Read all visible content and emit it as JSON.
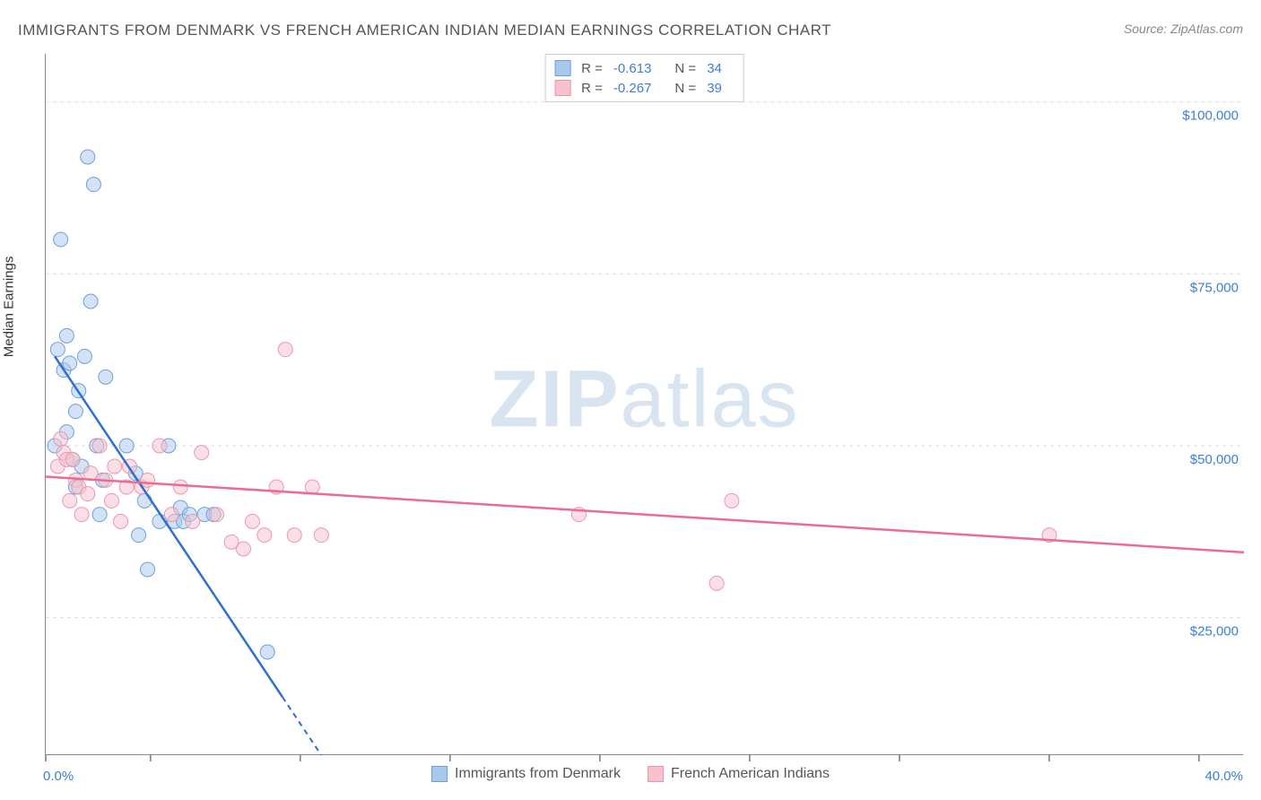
{
  "title": "IMMIGRANTS FROM DENMARK VS FRENCH AMERICAN INDIAN MEDIAN EARNINGS CORRELATION CHART",
  "source": "Source: ZipAtlas.com",
  "watermark": "ZIPatlas",
  "y_axis_label": "Median Earnings",
  "chart": {
    "type": "scatter",
    "xlim": [
      0,
      40
    ],
    "ylim": [
      5000,
      107000
    ],
    "x_tick_positions": [
      0,
      3.5,
      8.5,
      13.5,
      18.5,
      23.5,
      28.5,
      33.5,
      38.5
    ],
    "y_gridlines": [
      25000,
      50000,
      75000,
      100000
    ],
    "y_tick_labels": [
      "$25,000",
      "$50,000",
      "$75,000",
      "$100,000"
    ],
    "x_axis_min_label": "0.0%",
    "x_axis_max_label": "40.0%",
    "background_color": "#ffffff",
    "grid_color": "#dddddd",
    "axis_color": "#888888",
    "tick_color": "#333333",
    "label_color": "#3b7dd8",
    "marker_radius": 8,
    "marker_opacity": 0.5,
    "series": [
      {
        "name": "Immigrants from Denmark",
        "color_fill": "#a8c8ec",
        "color_stroke": "#6ca0dc",
        "line_color": "#2e6fd0",
        "R": "-0.613",
        "N": "34",
        "trend": {
          "x1": 0.3,
          "y1": 63000,
          "x2": 9.2,
          "y2": 5000,
          "dash_after_x": 7.9
        },
        "points": [
          [
            0.3,
            50000
          ],
          [
            0.4,
            64000
          ],
          [
            0.5,
            80000
          ],
          [
            0.6,
            61000
          ],
          [
            0.7,
            52000
          ],
          [
            0.7,
            66000
          ],
          [
            0.8,
            62000
          ],
          [
            0.9,
            48000
          ],
          [
            1.0,
            55000
          ],
          [
            1.0,
            44000
          ],
          [
            1.1,
            58000
          ],
          [
            1.2,
            47000
          ],
          [
            1.3,
            63000
          ],
          [
            1.4,
            92000
          ],
          [
            1.5,
            71000
          ],
          [
            1.6,
            88000
          ],
          [
            1.7,
            50000
          ],
          [
            1.8,
            40000
          ],
          [
            1.9,
            45000
          ],
          [
            2.0,
            60000
          ],
          [
            2.7,
            50000
          ],
          [
            3.0,
            46000
          ],
          [
            3.1,
            37000
          ],
          [
            3.3,
            42000
          ],
          [
            3.4,
            32000
          ],
          [
            3.8,
            39000
          ],
          [
            4.1,
            50000
          ],
          [
            4.3,
            39000
          ],
          [
            4.5,
            41000
          ],
          [
            4.6,
            39000
          ],
          [
            4.8,
            40000
          ],
          [
            5.3,
            40000
          ],
          [
            5.6,
            40000
          ],
          [
            7.4,
            20000
          ]
        ]
      },
      {
        "name": "French American Indians",
        "color_fill": "#f5c2ce",
        "color_stroke": "#ec96ad",
        "line_color": "#ec6a93",
        "R": "-0.267",
        "N": "39",
        "trend": {
          "x1": 0,
          "y1": 45500,
          "x2": 40,
          "y2": 34500
        },
        "points": [
          [
            0.4,
            47000
          ],
          [
            0.5,
            51000
          ],
          [
            0.6,
            49000
          ],
          [
            0.7,
            48000
          ],
          [
            0.8,
            42000
          ],
          [
            0.9,
            48000
          ],
          [
            1.0,
            45000
          ],
          [
            1.1,
            44000
          ],
          [
            1.2,
            40000
          ],
          [
            1.4,
            43000
          ],
          [
            1.5,
            46000
          ],
          [
            1.8,
            50000
          ],
          [
            2.0,
            45000
          ],
          [
            2.2,
            42000
          ],
          [
            2.3,
            47000
          ],
          [
            2.5,
            39000
          ],
          [
            2.7,
            44000
          ],
          [
            2.8,
            47000
          ],
          [
            3.2,
            44000
          ],
          [
            3.4,
            45000
          ],
          [
            3.8,
            50000
          ],
          [
            4.2,
            40000
          ],
          [
            4.5,
            44000
          ],
          [
            4.9,
            39000
          ],
          [
            5.2,
            49000
          ],
          [
            5.7,
            40000
          ],
          [
            6.2,
            36000
          ],
          [
            6.6,
            35000
          ],
          [
            6.9,
            39000
          ],
          [
            7.3,
            37000
          ],
          [
            7.7,
            44000
          ],
          [
            8.0,
            64000
          ],
          [
            8.3,
            37000
          ],
          [
            8.9,
            44000
          ],
          [
            9.2,
            37000
          ],
          [
            17.8,
            40000
          ],
          [
            22.4,
            30000
          ],
          [
            22.9,
            42000
          ],
          [
            33.5,
            37000
          ]
        ]
      }
    ]
  },
  "legend_bottom": [
    {
      "label": "Immigrants from Denmark",
      "fill": "#a8c8ec",
      "stroke": "#6ca0dc"
    },
    {
      "label": "French American Indians",
      "fill": "#f5c2ce",
      "stroke": "#ec96ad"
    }
  ]
}
